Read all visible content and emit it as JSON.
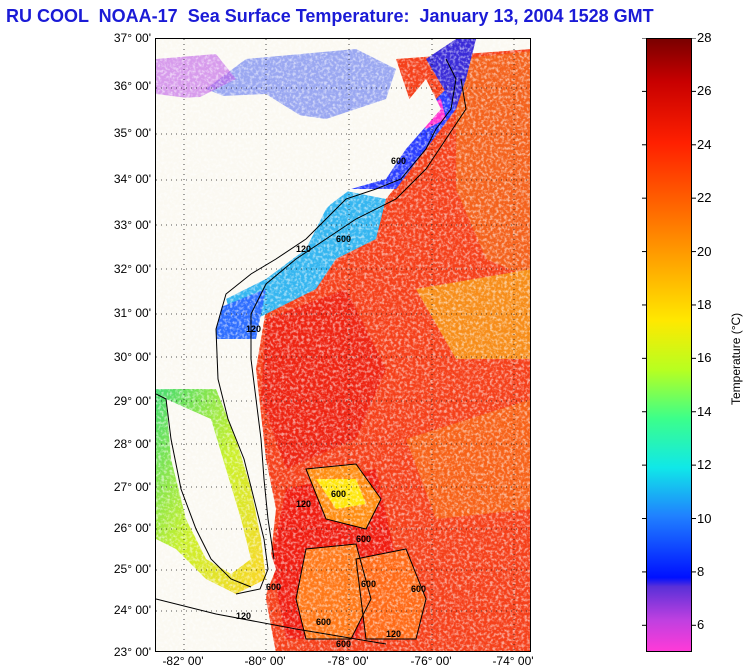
{
  "title": "RU COOL  NOAA-17  Sea Surface Temperature:  January 13, 2004 1528 GMT",
  "latitude_labels": [
    "37° 00'",
    "36° 00'",
    "35° 00'",
    "34° 00'",
    "33° 00'",
    "32° 00'",
    "31° 00'",
    "30° 00'",
    "29° 00'",
    "28° 00'",
    "27° 00'",
    "26° 00'",
    "25° 00'",
    "24° 00'",
    "23° 00'"
  ],
  "longitude_labels": [
    "-82° 00'",
    "-80° 00'",
    "-78° 00'",
    "-76° 00'",
    "-74° 00'"
  ],
  "colorbar": {
    "label": "Temperature (°C)",
    "ticks": [
      "28",
      "26",
      "24",
      "22",
      "20",
      "18",
      "16",
      "14",
      "12",
      "10",
      "8",
      "6"
    ],
    "range": [
      5,
      28
    ]
  },
  "contour_labels": [
    "120",
    "600",
    "120",
    "600",
    "120",
    "600",
    "600",
    "600",
    "600",
    "120",
    "600",
    "120",
    "600",
    "600"
  ],
  "colors": {
    "title": "#1b1bd6",
    "land": "#fbf9f2",
    "warm_water": "#f22a14",
    "cool_water": "#1f3bff"
  }
}
